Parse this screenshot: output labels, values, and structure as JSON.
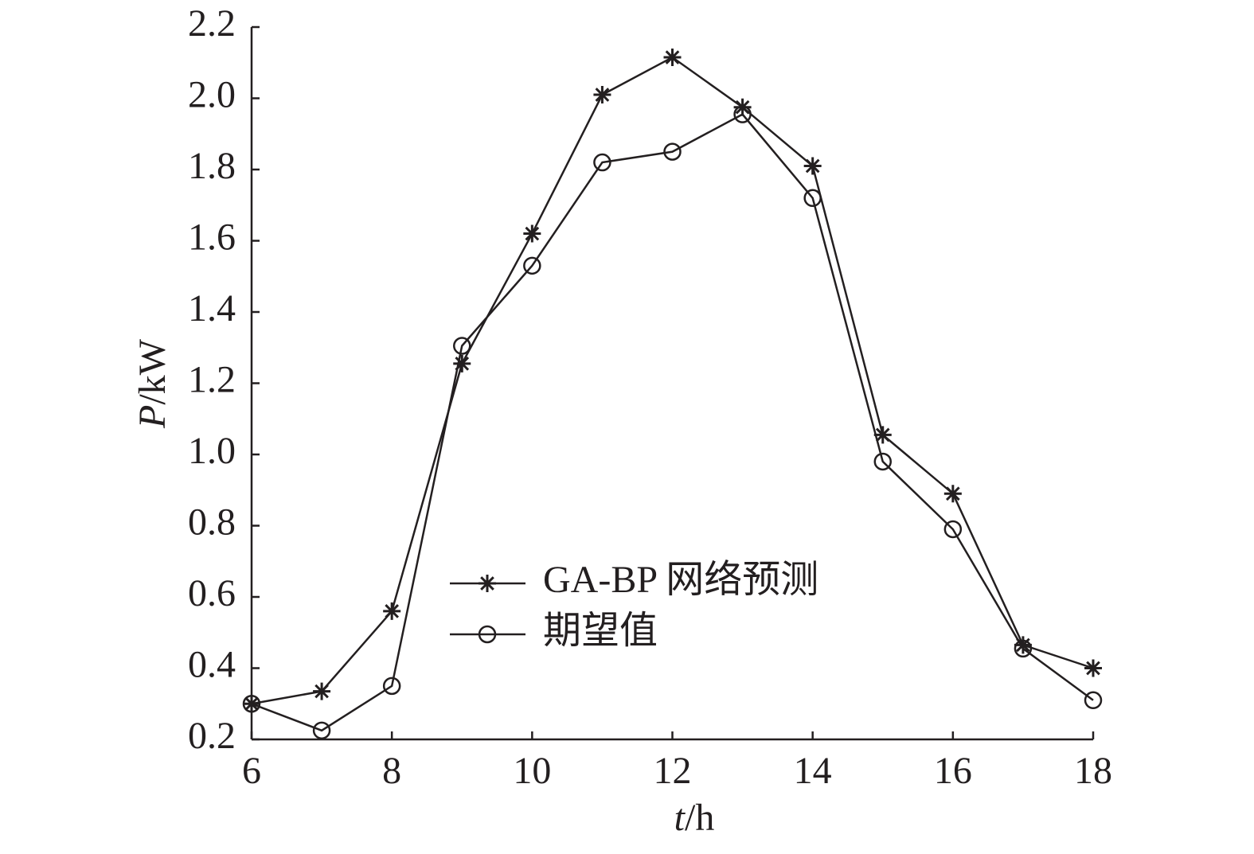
{
  "chart_data": {
    "type": "line",
    "xlabel": "t/h",
    "ylabel": "P/kW",
    "x": [
      6,
      7,
      8,
      9,
      10,
      11,
      12,
      13,
      14,
      15,
      16,
      17,
      18
    ],
    "series": [
      {
        "name": "GA-BP 网络预测",
        "color": "#231f20",
        "marker": "*",
        "values": [
          0.3,
          0.335,
          0.56,
          1.255,
          1.62,
          2.01,
          2.115,
          1.975,
          1.81,
          1.055,
          0.89,
          0.465,
          0.4
        ]
      },
      {
        "name": "期望值",
        "color": "#231f20",
        "marker": "o",
        "values": [
          0.3,
          0.225,
          0.35,
          1.305,
          1.53,
          1.82,
          1.85,
          1.955,
          1.72,
          0.98,
          0.79,
          0.455,
          0.31
        ]
      }
    ],
    "xlim": [
      6,
      18
    ],
    "xticks": [
      6,
      8,
      10,
      12,
      14,
      16,
      18
    ],
    "ylim": [
      0.2,
      2.2
    ],
    "yticks": [
      0.2,
      0.4,
      0.6,
      0.8,
      {
        "value": 1,
        "label": "1.0"
      },
      1.2,
      1.4,
      1.6,
      1.8,
      {
        "value": 2,
        "label": "2.0"
      },
      2.2
    ]
  }
}
